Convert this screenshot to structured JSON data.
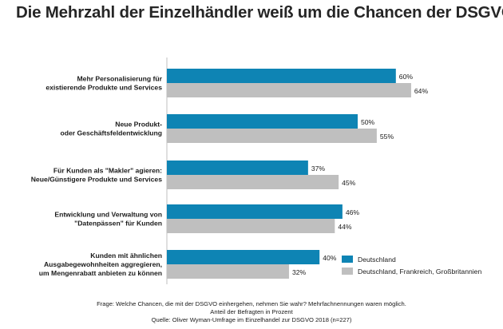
{
  "title": "Die Mehrzahl der Einzelhändler weiß um die Chancen der DSGVO",
  "chart_data": {
    "type": "bar",
    "orientation": "horizontal",
    "categories": [
      [
        "Mehr Personalisierung für",
        "existierende Produkte und Services"
      ],
      [
        "Neue Produkt-",
        "oder Geschäftsfeldentwicklung"
      ],
      [
        "Für Kunden als \"Makler\" agieren:",
        "Neue/Günstigere Produkte und Services"
      ],
      [
        "Entwicklung und Verwaltung von",
        "\"Datenpässen\" für Kunden"
      ],
      [
        "Kunden mit ähnlichen",
        "Ausgabegewohnheiten aggregieren,",
        "um Mengenrabatt anbieten zu können"
      ]
    ],
    "series": [
      {
        "name": "Deutschland",
        "color": "#0e84b4",
        "values": [
          60,
          50,
          37,
          46,
          40
        ]
      },
      {
        "name": "Deutschland, Frankreich, Großbritannien",
        "color": "#bfbfbf",
        "values": [
          64,
          55,
          45,
          44,
          32
        ]
      }
    ],
    "value_suffix": "%",
    "xlim": [
      0,
      100
    ],
    "legend_position": "right",
    "grid": false
  },
  "footer": {
    "line1": "Frage: Welche Chancen, die mit der DSGVO einhergehen, nehmen Sie wahr? Mehrfachnennungen waren möglich.",
    "line2": "Anteil der Befragten in Prozent",
    "line3": "Quelle: Oliver Wyman-Umfrage im Einzelhandel zur DSGVO 2018 (n=227)"
  }
}
